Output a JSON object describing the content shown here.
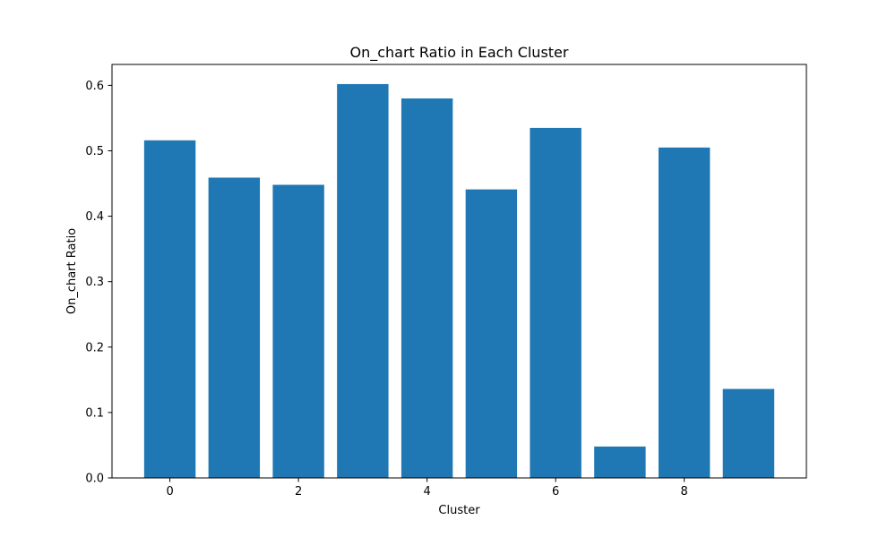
{
  "chart_data": {
    "type": "bar",
    "title": "On_chart Ratio in Each Cluster",
    "xlabel": "Cluster",
    "ylabel": "On_chart Ratio",
    "categories": [
      0,
      1,
      2,
      3,
      4,
      5,
      6,
      7,
      8,
      9
    ],
    "values": [
      0.516,
      0.459,
      0.448,
      0.602,
      0.58,
      0.441,
      0.535,
      0.048,
      0.505,
      0.136
    ],
    "xlim": [
      -0.9,
      9.9
    ],
    "ylim": [
      0,
      0.632
    ],
    "xticks": [
      0,
      2,
      4,
      6,
      8
    ],
    "xtick_labels": [
      "0",
      "2",
      "4",
      "6",
      "8"
    ],
    "yticks": [
      0.0,
      0.1,
      0.2,
      0.3,
      0.4,
      0.5,
      0.6
    ],
    "ytick_labels": [
      "0.0",
      "0.1",
      "0.2",
      "0.3",
      "0.4",
      "0.5",
      "0.6"
    ],
    "bar_width": 0.8,
    "bar_color": "#1f77b4",
    "grid": false
  }
}
